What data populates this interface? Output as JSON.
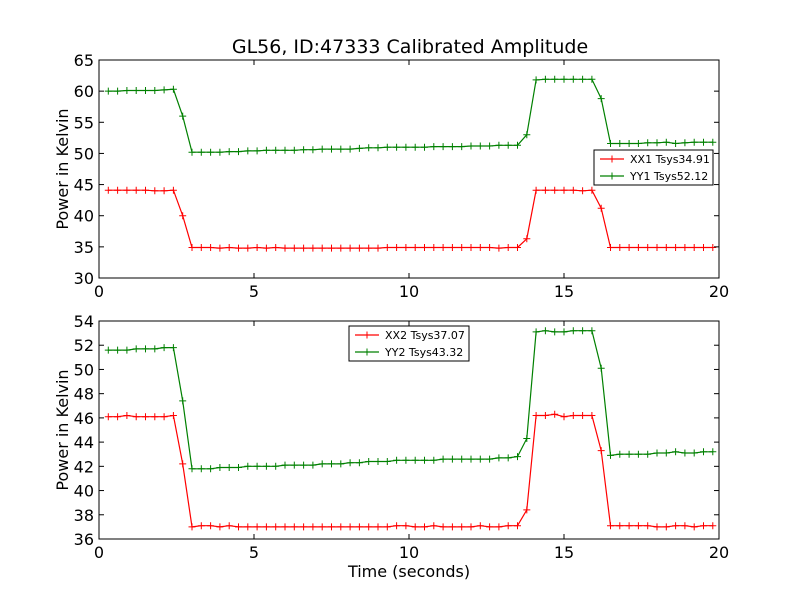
{
  "title": "GL56, ID:47333 Calibrated Amplitude",
  "colors": {
    "red": "#ff0000",
    "green": "#008000"
  },
  "chart_data": [
    {
      "type": "line",
      "ylabel": "Power in Kelvin",
      "xlabel": "",
      "xlim": [
        0,
        20
      ],
      "ylim": [
        30,
        65
      ],
      "xticks": [
        "0",
        "5",
        "10",
        "15",
        "20"
      ],
      "yticks": [
        "30",
        "35",
        "40",
        "45",
        "50",
        "55",
        "60",
        "65"
      ],
      "legend_position": "right",
      "x": [
        0.3,
        0.6,
        0.9,
        1.2,
        1.5,
        1.8,
        2.1,
        2.4,
        2.7,
        3.0,
        3.3,
        3.6,
        3.9,
        4.2,
        4.5,
        4.8,
        5.1,
        5.4,
        5.7,
        6.0,
        6.3,
        6.6,
        6.9,
        7.2,
        7.5,
        7.8,
        8.1,
        8.4,
        8.7,
        9.0,
        9.3,
        9.6,
        9.9,
        10.2,
        10.5,
        10.8,
        11.1,
        11.4,
        11.7,
        12.0,
        12.3,
        12.6,
        12.9,
        13.2,
        13.5,
        13.8,
        14.1,
        14.4,
        14.7,
        15.0,
        15.3,
        15.6,
        15.9,
        16.2,
        16.5,
        16.8,
        17.1,
        17.4,
        17.7,
        18.0,
        18.3,
        18.6,
        18.9,
        19.2,
        19.5,
        19.8
      ],
      "series": [
        {
          "name": "XX1 Tsys34.91",
          "color": "#ff0000",
          "values": [
            44.1,
            44.1,
            44.1,
            44.1,
            44.1,
            44.0,
            44.0,
            44.1,
            40.0,
            34.9,
            34.9,
            34.9,
            34.8,
            34.9,
            34.8,
            34.8,
            34.9,
            34.8,
            34.9,
            34.8,
            34.8,
            34.8,
            34.8,
            34.8,
            34.8,
            34.8,
            34.8,
            34.8,
            34.8,
            34.8,
            34.9,
            34.9,
            34.9,
            34.9,
            34.9,
            34.9,
            34.9,
            34.9,
            34.9,
            34.9,
            34.9,
            34.9,
            34.8,
            34.9,
            34.9,
            36.3,
            44.1,
            44.1,
            44.1,
            44.1,
            44.1,
            44.0,
            44.1,
            41.2,
            34.9,
            34.9,
            34.9,
            34.9,
            34.9,
            34.9,
            34.9,
            34.9,
            34.9,
            34.9,
            34.9,
            34.9
          ]
        },
        {
          "name": "YY1 Tsys52.12",
          "color": "#008000",
          "values": [
            60.0,
            60.0,
            60.1,
            60.1,
            60.1,
            60.1,
            60.2,
            60.3,
            56.0,
            50.2,
            50.2,
            50.2,
            50.2,
            50.3,
            50.3,
            50.4,
            50.4,
            50.5,
            50.5,
            50.5,
            50.5,
            50.6,
            50.6,
            50.7,
            50.7,
            50.7,
            50.7,
            50.8,
            50.9,
            50.9,
            51.0,
            51.0,
            51.0,
            51.0,
            51.0,
            51.1,
            51.1,
            51.1,
            51.1,
            51.2,
            51.2,
            51.2,
            51.3,
            51.3,
            51.3,
            53.0,
            61.8,
            61.9,
            61.9,
            61.9,
            61.9,
            61.9,
            61.9,
            58.8,
            51.6,
            51.6,
            51.6,
            51.6,
            51.7,
            51.7,
            51.8,
            51.6,
            51.7,
            51.8,
            51.8,
            51.8
          ]
        }
      ]
    },
    {
      "type": "line",
      "ylabel": "Power in Kelvin",
      "xlabel": "Time (seconds)",
      "xlim": [
        0,
        20
      ],
      "ylim": [
        36,
        54
      ],
      "xticks": [
        "0",
        "5",
        "10",
        "15",
        "20"
      ],
      "yticks": [
        "36",
        "38",
        "40",
        "42",
        "44",
        "46",
        "48",
        "50",
        "52",
        "54"
      ],
      "legend_position": "upper center",
      "x": [
        0.3,
        0.6,
        0.9,
        1.2,
        1.5,
        1.8,
        2.1,
        2.4,
        2.7,
        3.0,
        3.3,
        3.6,
        3.9,
        4.2,
        4.5,
        4.8,
        5.1,
        5.4,
        5.7,
        6.0,
        6.3,
        6.6,
        6.9,
        7.2,
        7.5,
        7.8,
        8.1,
        8.4,
        8.7,
        9.0,
        9.3,
        9.6,
        9.9,
        10.2,
        10.5,
        10.8,
        11.1,
        11.4,
        11.7,
        12.0,
        12.3,
        12.6,
        12.9,
        13.2,
        13.5,
        13.8,
        14.1,
        14.4,
        14.7,
        15.0,
        15.3,
        15.6,
        15.9,
        16.2,
        16.5,
        16.8,
        17.1,
        17.4,
        17.7,
        18.0,
        18.3,
        18.6,
        18.9,
        19.2,
        19.5,
        19.8
      ],
      "series": [
        {
          "name": "XX2 Tsys37.07",
          "color": "#ff0000",
          "values": [
            46.1,
            46.1,
            46.2,
            46.1,
            46.1,
            46.1,
            46.1,
            46.2,
            42.2,
            37.0,
            37.1,
            37.1,
            37.0,
            37.1,
            37.0,
            37.0,
            37.0,
            37.0,
            37.0,
            37.0,
            37.0,
            37.0,
            37.0,
            37.0,
            37.0,
            37.0,
            37.0,
            37.0,
            37.0,
            37.0,
            37.0,
            37.1,
            37.1,
            37.0,
            37.0,
            37.1,
            37.0,
            37.0,
            37.0,
            37.0,
            37.1,
            37.0,
            37.0,
            37.1,
            37.1,
            38.4,
            46.2,
            46.2,
            46.3,
            46.1,
            46.2,
            46.2,
            46.2,
            43.3,
            37.1,
            37.1,
            37.1,
            37.1,
            37.1,
            37.0,
            37.0,
            37.1,
            37.1,
            37.0,
            37.1,
            37.1
          ]
        },
        {
          "name": "YY2 Tsys43.32",
          "color": "#008000",
          "values": [
            51.6,
            51.6,
            51.6,
            51.7,
            51.7,
            51.7,
            51.8,
            51.8,
            47.4,
            41.8,
            41.8,
            41.8,
            41.9,
            41.9,
            41.9,
            42.0,
            42.0,
            42.0,
            42.0,
            42.1,
            42.1,
            42.1,
            42.1,
            42.2,
            42.2,
            42.2,
            42.3,
            42.3,
            42.4,
            42.4,
            42.4,
            42.5,
            42.5,
            42.5,
            42.5,
            42.5,
            42.6,
            42.6,
            42.6,
            42.6,
            42.6,
            42.6,
            42.7,
            42.7,
            42.8,
            44.3,
            53.1,
            53.2,
            53.1,
            53.1,
            53.2,
            53.2,
            53.2,
            50.1,
            42.9,
            43.0,
            43.0,
            43.0,
            43.0,
            43.1,
            43.1,
            43.2,
            43.1,
            43.1,
            43.2,
            43.2
          ]
        }
      ]
    }
  ]
}
